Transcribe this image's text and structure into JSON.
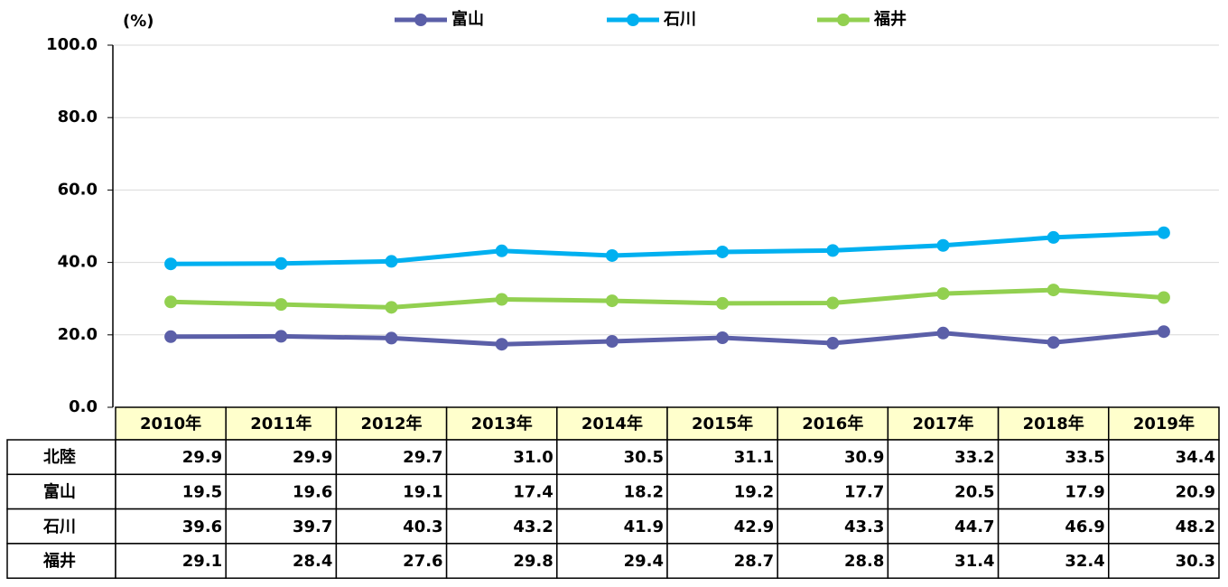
{
  "chart_data": {
    "type": "line",
    "unit_label": "(%)",
    "categories": [
      "2010年",
      "2011年",
      "2012年",
      "2013年",
      "2014年",
      "2015年",
      "2016年",
      "2017年",
      "2018年",
      "2019年"
    ],
    "series": [
      {
        "name": "北陸",
        "values": [
          29.9,
          29.9,
          29.7,
          31.0,
          30.5,
          31.1,
          30.9,
          33.2,
          33.5,
          34.4
        ],
        "value_labels": [
          "29.9",
          "29.9",
          "29.7",
          "31.0",
          "30.5",
          "31.1",
          "30.9",
          "33.2",
          "33.5",
          "34.4"
        ]
      },
      {
        "name": "富山",
        "color": "#5b5fa8",
        "values": [
          19.5,
          19.6,
          19.1,
          17.4,
          18.2,
          19.2,
          17.7,
          20.5,
          17.9,
          20.9
        ],
        "value_labels": [
          "19.5",
          "19.6",
          "19.1",
          "17.4",
          "18.2",
          "19.2",
          "17.7",
          "20.5",
          "17.9",
          "20.9"
        ]
      },
      {
        "name": "石川",
        "color": "#00b0f0",
        "values": [
          39.6,
          39.7,
          40.3,
          43.2,
          41.9,
          42.9,
          43.3,
          44.7,
          46.9,
          48.2
        ],
        "value_labels": [
          "39.6",
          "39.7",
          "40.3",
          "43.2",
          "41.9",
          "42.9",
          "43.3",
          "44.7",
          "46.9",
          "48.2"
        ]
      },
      {
        "name": "福井",
        "color": "#92d050",
        "values": [
          29.1,
          28.4,
          27.6,
          29.8,
          29.4,
          28.7,
          28.8,
          31.4,
          32.4,
          30.3
        ],
        "value_labels": [
          "29.1",
          "28.4",
          "27.6",
          "29.8",
          "29.4",
          "28.7",
          "28.8",
          "31.4",
          "32.4",
          "30.3"
        ]
      }
    ],
    "ylim": [
      0,
      100
    ],
    "yticks": [
      {
        "value": 0,
        "label": "0.0"
      },
      {
        "value": 20,
        "label": "20.0"
      },
      {
        "value": 40,
        "label": "40.0"
      },
      {
        "value": 60,
        "label": "60.0"
      },
      {
        "value": 80,
        "label": "80.0"
      },
      {
        "value": 100,
        "label": "100.0"
      }
    ],
    "grid": true,
    "legend": "top"
  }
}
